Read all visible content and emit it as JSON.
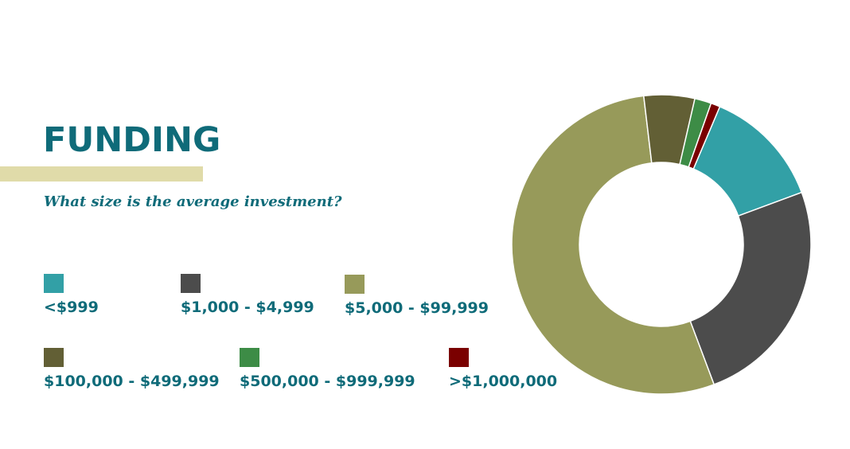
{
  "header": {
    "title": "FUNDING",
    "subtitle": "What size is the average investment?"
  },
  "chart_data": {
    "type": "pie",
    "variant": "donut",
    "title": "",
    "legend_position": "left",
    "categories": [
      "<$999",
      "$1,000 - $4,999",
      "$5,000 - $99,999",
      "$100,000 - $499,999",
      "$500,000 - $999,999",
      ">$1,000,000"
    ],
    "series": [
      {
        "values": [
          13,
          25,
          54,
          5.5,
          1.8,
          1.0
        ],
        "colors": [
          "#32a0a6",
          "#4c4c4c",
          "#979a5a",
          "#625f35",
          "#3d8c46",
          "#7a0000"
        ]
      }
    ]
  }
}
